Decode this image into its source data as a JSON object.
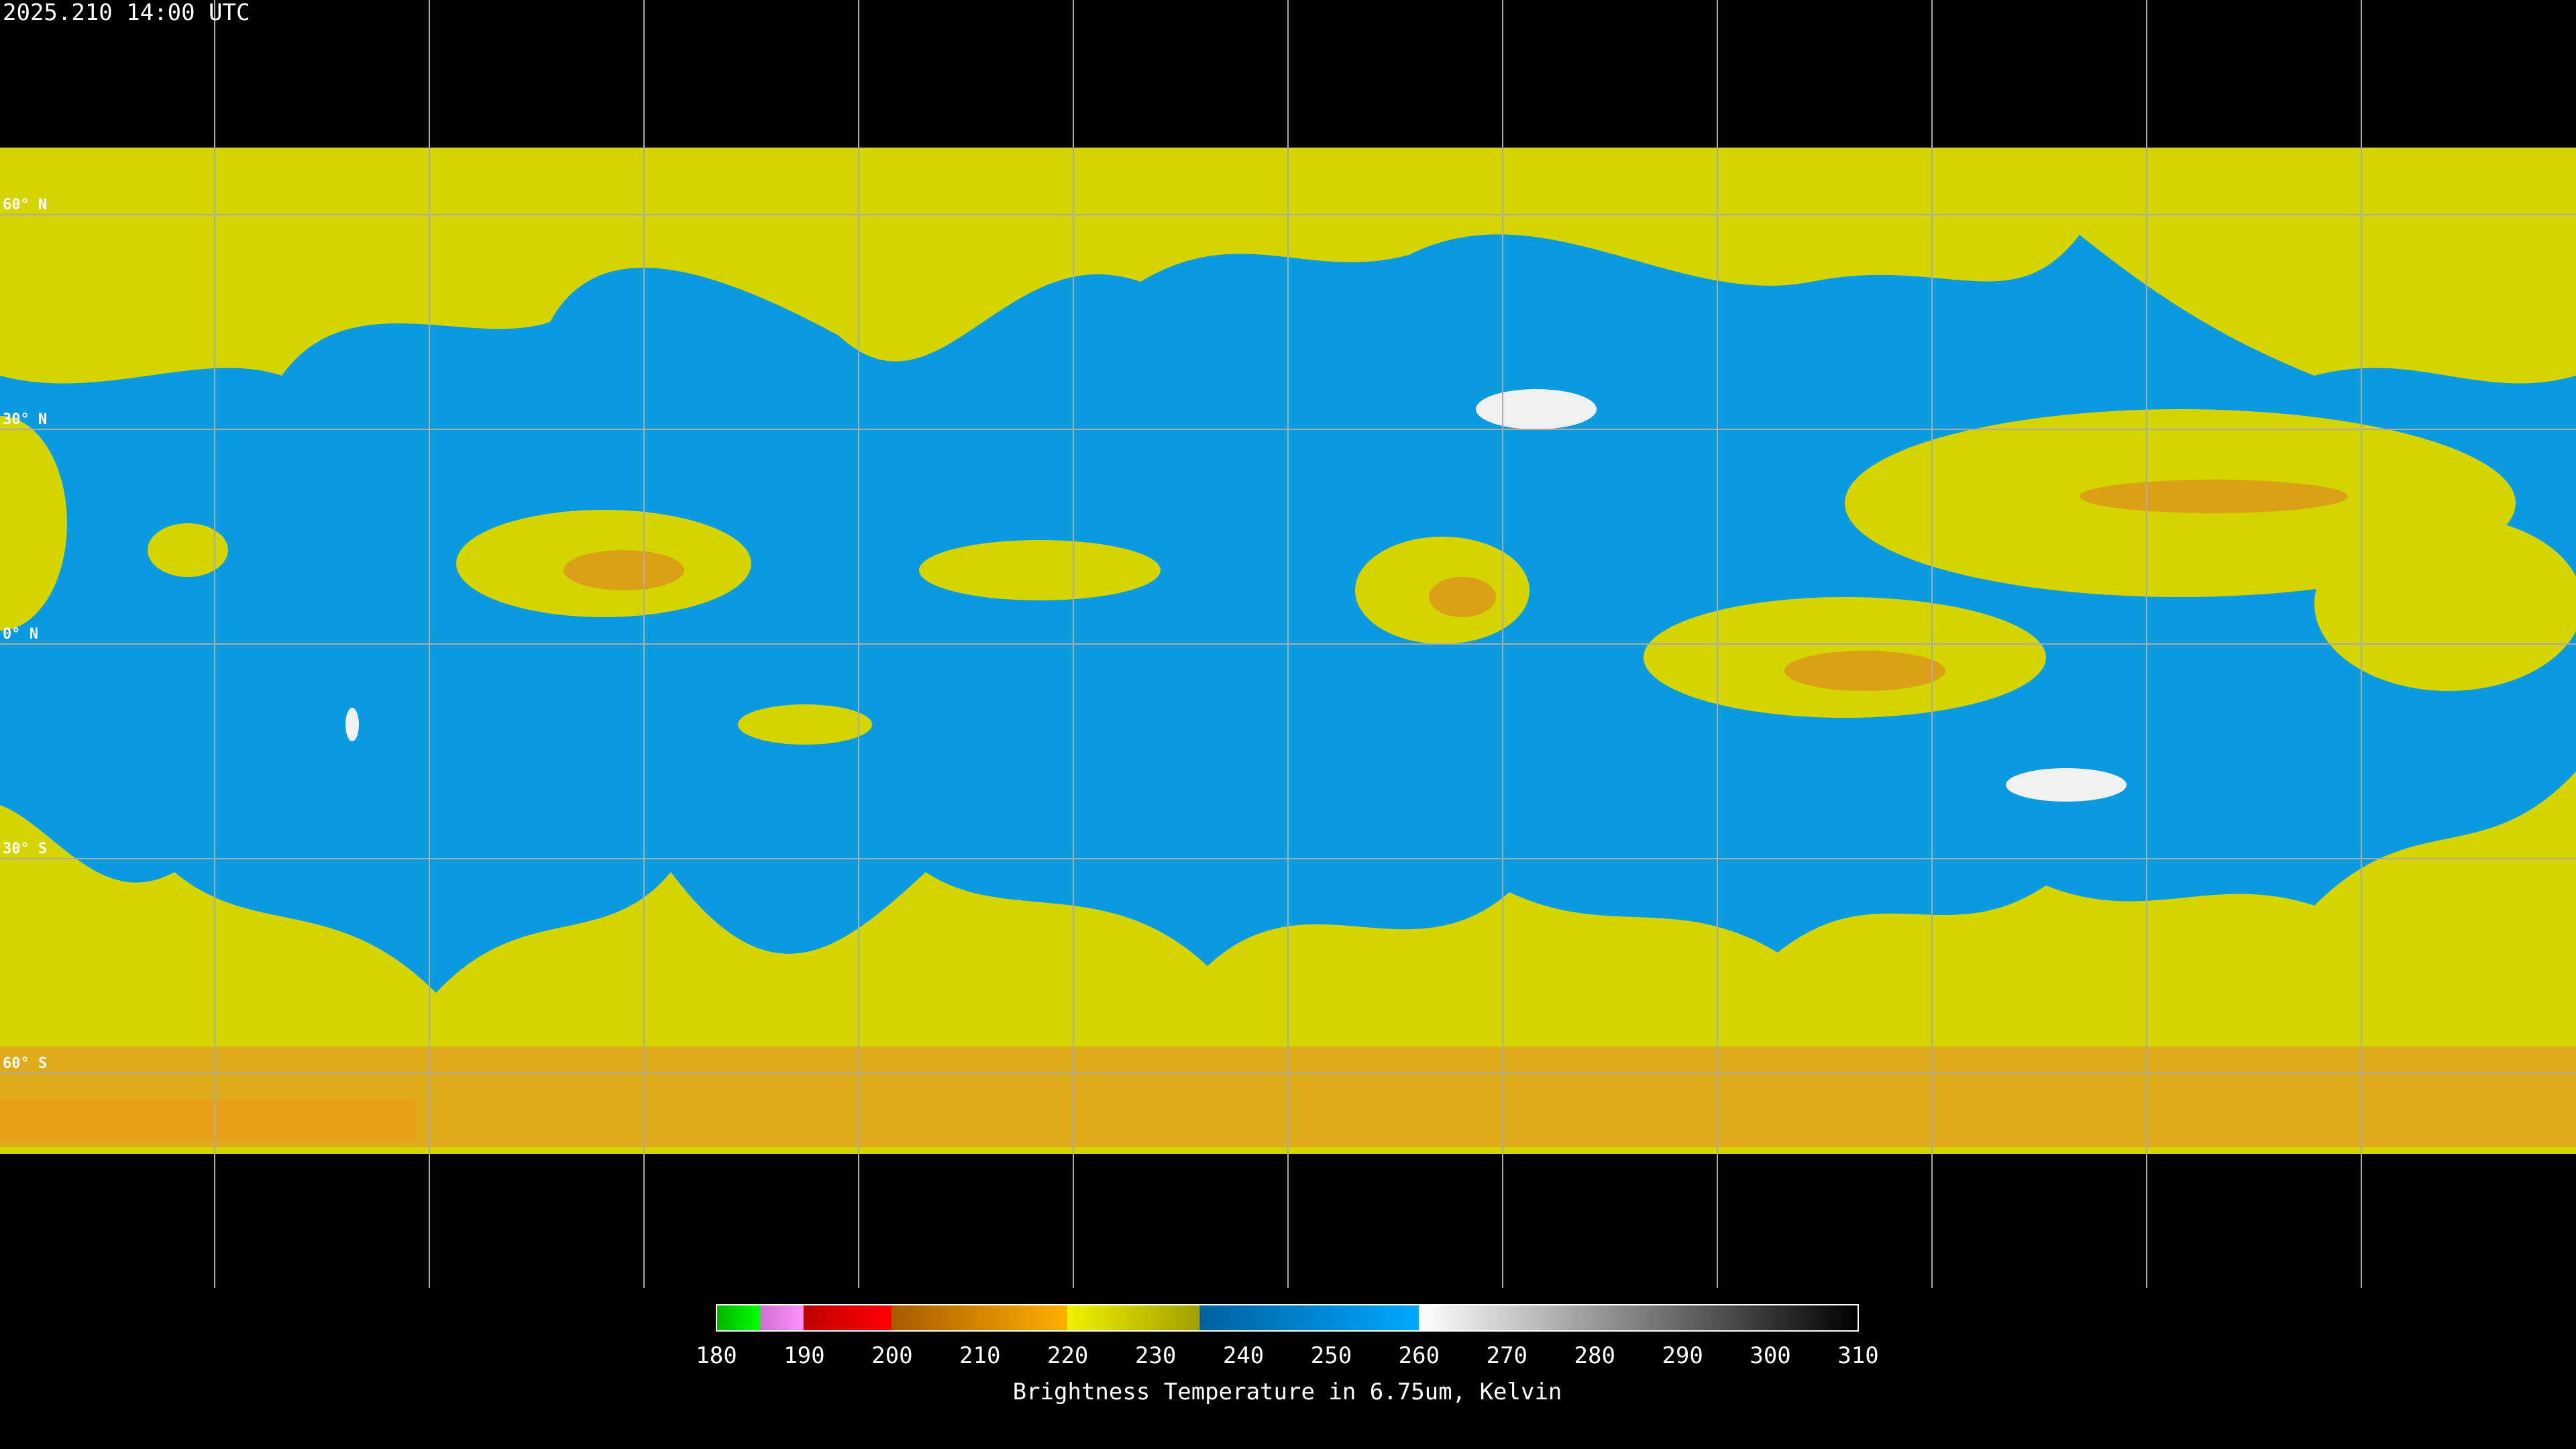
{
  "header": {
    "timestamp": "2025.210 14:00 UTC"
  },
  "map": {
    "latitude_labels": [
      "60° N",
      "30° N",
      "0° N",
      "30° S",
      "60° S"
    ]
  },
  "colorbar": {
    "range": [
      180,
      310
    ],
    "ticks": [
      180,
      190,
      200,
      210,
      220,
      230,
      240,
      250,
      260,
      270,
      280,
      290,
      300,
      310
    ],
    "label": "Brightness Temperature in 6.75um, Kelvin"
  }
}
